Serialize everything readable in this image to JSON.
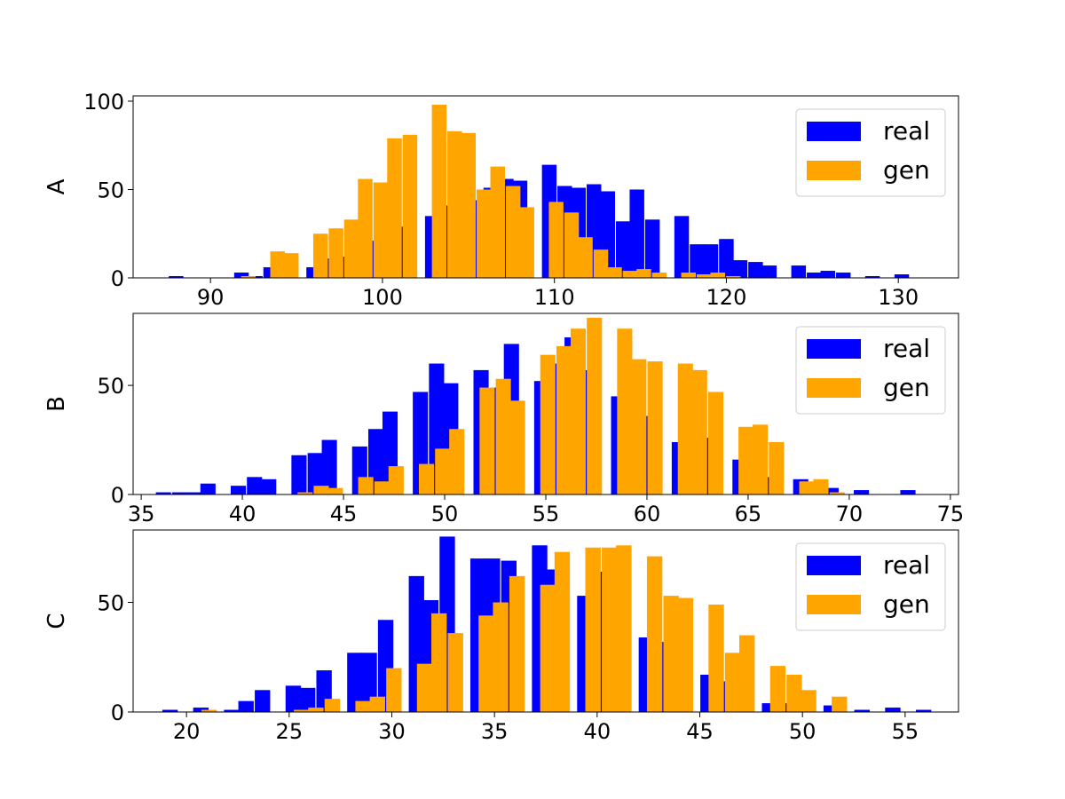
{
  "colors": {
    "real": "#0000ff",
    "gen": "#ffa500"
  },
  "legend_placement": "top-right",
  "chart_data": [
    {
      "type": "bar",
      "ylabel": "A",
      "xlim": [
        85.5,
        133.5
      ],
      "ylim": [
        0,
        103
      ],
      "xticks": [
        90,
        100,
        110,
        120,
        130
      ],
      "yticks": [
        0,
        50,
        100
      ],
      "bin_width": 0.85,
      "series": [
        {
          "name": "real",
          "points": [
            [
              88,
              1
            ],
            [
              91.8,
              3
            ],
            [
              92.6,
              1
            ],
            [
              93.5,
              6
            ],
            [
              94.3,
              8
            ],
            [
              96,
              6
            ],
            [
              96.9,
              11
            ],
            [
              97.8,
              12
            ],
            [
              98.6,
              22
            ],
            [
              99.5,
              21
            ],
            [
              100.3,
              20
            ],
            [
              101.2,
              29
            ],
            [
              102.9,
              35
            ],
            [
              103.8,
              41
            ],
            [
              104.6,
              53
            ],
            [
              105.5,
              44
            ],
            [
              106.3,
              51
            ],
            [
              107.2,
              56
            ],
            [
              108,
              55
            ],
            [
              109.7,
              64
            ],
            [
              110.6,
              52
            ],
            [
              111.4,
              51
            ],
            [
              112.3,
              53
            ],
            [
              113.1,
              49
            ],
            [
              114,
              32
            ],
            [
              114.8,
              50
            ],
            [
              115.7,
              33
            ],
            [
              117.4,
              35
            ],
            [
              118.3,
              19
            ],
            [
              119.1,
              19
            ],
            [
              120,
              22
            ],
            [
              120.8,
              10
            ],
            [
              121.7,
              9
            ],
            [
              122.5,
              7
            ],
            [
              124.2,
              7
            ],
            [
              125.1,
              3
            ],
            [
              125.9,
              4
            ],
            [
              126.8,
              3
            ],
            [
              128.5,
              1
            ],
            [
              130.2,
              2
            ]
          ]
        },
        {
          "name": "gen",
          "points": [
            [
              92.2,
              1
            ],
            [
              93.9,
              15
            ],
            [
              94.7,
              14
            ],
            [
              96.4,
              25
            ],
            [
              97.3,
              28
            ],
            [
              98.2,
              33
            ],
            [
              99,
              56
            ],
            [
              99.9,
              54
            ],
            [
              100.7,
              79
            ],
            [
              101.6,
              81
            ],
            [
              103.3,
              98
            ],
            [
              104.2,
              83
            ],
            [
              105,
              82
            ],
            [
              105.9,
              50
            ],
            [
              106.7,
              63
            ],
            [
              107.6,
              52
            ],
            [
              108.4,
              40
            ],
            [
              110.1,
              43
            ],
            [
              111,
              37
            ],
            [
              111.8,
              23
            ],
            [
              112.7,
              16
            ],
            [
              113.5,
              6
            ],
            [
              114.4,
              4
            ],
            [
              115.2,
              5
            ],
            [
              116.1,
              3
            ],
            [
              117.8,
              3
            ],
            [
              118.7,
              2
            ],
            [
              119.5,
              3
            ],
            [
              120.4,
              1
            ]
          ]
        }
      ]
    },
    {
      "type": "bar",
      "ylabel": "B",
      "xlim": [
        34.6,
        75.4
      ],
      "ylim": [
        0,
        83
      ],
      "xticks": [
        35,
        40,
        45,
        50,
        55,
        60,
        65,
        70,
        75
      ],
      "yticks": [
        0,
        50
      ],
      "bin_width": 0.75,
      "series": [
        {
          "name": "real",
          "points": [
            [
              36.1,
              1
            ],
            [
              36.9,
              1
            ],
            [
              37.6,
              1
            ],
            [
              38.3,
              5
            ],
            [
              39.8,
              4
            ],
            [
              40.6,
              8
            ],
            [
              41.3,
              7
            ],
            [
              42.8,
              18
            ],
            [
              43.6,
              19
            ],
            [
              44.3,
              25
            ],
            [
              45.8,
              22
            ],
            [
              46.6,
              30
            ],
            [
              47.3,
              38
            ],
            [
              48.8,
              47
            ],
            [
              49.6,
              60
            ],
            [
              50.3,
              51
            ],
            [
              51.8,
              57
            ],
            [
              52.6,
              49
            ],
            [
              53.3,
              69
            ],
            [
              54.8,
              52
            ],
            [
              55.6,
              60
            ],
            [
              56.3,
              72
            ],
            [
              57.1,
              57
            ],
            [
              58.6,
              45
            ],
            [
              59.3,
              48
            ],
            [
              60.1,
              36
            ],
            [
              61.6,
              24
            ],
            [
              62.3,
              11
            ],
            [
              63.1,
              26
            ],
            [
              64.6,
              16
            ],
            [
              65.3,
              15
            ],
            [
              66.1,
              8
            ],
            [
              67.6,
              7
            ],
            [
              68.3,
              4
            ],
            [
              69.1,
              3
            ],
            [
              70.6,
              2
            ],
            [
              72.9,
              2
            ]
          ]
        },
        {
          "name": "gen",
          "points": [
            [
              43.1,
              1
            ],
            [
              43.9,
              4
            ],
            [
              44.6,
              3
            ],
            [
              46.1,
              8
            ],
            [
              46.9,
              6
            ],
            [
              47.6,
              13
            ],
            [
              49.1,
              14
            ],
            [
              49.9,
              21
            ],
            [
              50.6,
              30
            ],
            [
              52.1,
              49
            ],
            [
              52.9,
              53
            ],
            [
              53.6,
              43
            ],
            [
              55.1,
              64
            ],
            [
              55.9,
              68
            ],
            [
              56.6,
              76
            ],
            [
              57.4,
              81
            ],
            [
              58.9,
              76
            ],
            [
              59.6,
              62
            ],
            [
              60.4,
              61
            ],
            [
              61.9,
              60
            ],
            [
              62.6,
              57
            ],
            [
              63.4,
              47
            ],
            [
              64.9,
              31
            ],
            [
              65.6,
              32
            ],
            [
              66.4,
              24
            ],
            [
              67.9,
              6
            ],
            [
              68.6,
              7
            ],
            [
              69.4,
              1
            ]
          ]
        }
      ]
    },
    {
      "type": "bar",
      "ylabel": "C",
      "xlim": [
        17.4,
        57.6
      ],
      "ylim": [
        0,
        83
      ],
      "xticks": [
        20,
        25,
        30,
        35,
        40,
        45,
        50,
        55
      ],
      "yticks": [
        0,
        50
      ],
      "bin_width": 0.75,
      "series": [
        {
          "name": "real",
          "points": [
            [
              19.2,
              1
            ],
            [
              20.7,
              2
            ],
            [
              22.2,
              1
            ],
            [
              22.9,
              5
            ],
            [
              23.7,
              10
            ],
            [
              25.2,
              12
            ],
            [
              25.9,
              11
            ],
            [
              26.7,
              19
            ],
            [
              28.2,
              27
            ],
            [
              28.9,
              27
            ],
            [
              29.7,
              42
            ],
            [
              31.2,
              62
            ],
            [
              31.9,
              51
            ],
            [
              32.7,
              80
            ],
            [
              34.2,
              70
            ],
            [
              34.9,
              70
            ],
            [
              35.7,
              69
            ],
            [
              37.2,
              76
            ],
            [
              37.9,
              65
            ],
            [
              39.4,
              53
            ],
            [
              40.2,
              64
            ],
            [
              40.9,
              41
            ],
            [
              42.4,
              34
            ],
            [
              43.2,
              32
            ],
            [
              43.9,
              22
            ],
            [
              45.4,
              17
            ],
            [
              46.2,
              14
            ],
            [
              46.9,
              6
            ],
            [
              48.4,
              4
            ],
            [
              49.2,
              4
            ],
            [
              49.9,
              2
            ],
            [
              51.4,
              3
            ],
            [
              52.9,
              1
            ],
            [
              54.4,
              2
            ],
            [
              55.9,
              1
            ]
          ]
        },
        {
          "name": "gen",
          "points": [
            [
              21.1,
              1
            ],
            [
              25.6,
              1
            ],
            [
              26.3,
              2
            ],
            [
              27.1,
              6
            ],
            [
              28.6,
              5
            ],
            [
              29.3,
              7
            ],
            [
              30.1,
              20
            ],
            [
              31.6,
              22
            ],
            [
              32.3,
              45
            ],
            [
              33.1,
              36
            ],
            [
              34.6,
              44
            ],
            [
              35.3,
              50
            ],
            [
              36.1,
              62
            ],
            [
              37.6,
              58
            ],
            [
              38.3,
              73
            ],
            [
              39.8,
              75
            ],
            [
              40.6,
              75
            ],
            [
              41.3,
              76
            ],
            [
              42.8,
              71
            ],
            [
              43.6,
              53
            ],
            [
              44.3,
              52
            ],
            [
              45.8,
              49
            ],
            [
              46.6,
              27
            ],
            [
              47.3,
              35
            ],
            [
              48.8,
              21
            ],
            [
              49.6,
              17
            ],
            [
              50.3,
              10
            ],
            [
              51.8,
              7
            ]
          ]
        }
      ]
    }
  ]
}
